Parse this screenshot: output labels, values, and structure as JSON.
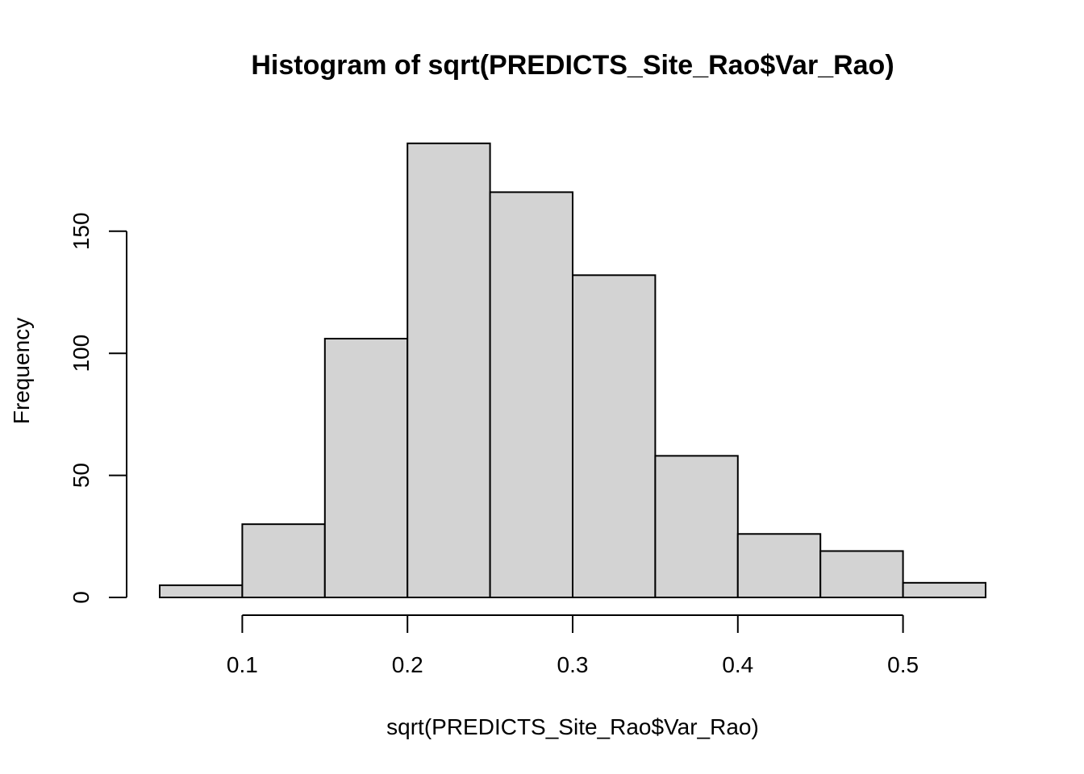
{
  "chart_data": {
    "type": "bar",
    "title": "Histogram of sqrt(PREDICTS_Site_Rao$Var_Rao)",
    "xlabel": "sqrt(PREDICTS_Site_Rao$Var_Rao)",
    "ylabel": "Frequency",
    "bin_edges": [
      0.05,
      0.1,
      0.15,
      0.2,
      0.25,
      0.3,
      0.35,
      0.4,
      0.45,
      0.5,
      0.55
    ],
    "values": [
      5,
      30,
      106,
      186,
      166,
      132,
      58,
      26,
      19,
      6
    ],
    "xlim": [
      0.05,
      0.55
    ],
    "ylim": [
      0,
      186
    ],
    "x_ticks": [
      0.1,
      0.2,
      0.3,
      0.4,
      0.5
    ],
    "x_tick_labels": [
      "0.1",
      "0.2",
      "0.3",
      "0.4",
      "0.5"
    ],
    "y_ticks": [
      0,
      50,
      100,
      150
    ],
    "y_tick_labels": [
      "0",
      "50",
      "100",
      "150"
    ],
    "bar_fill": "#d3d3d3",
    "bar_stroke": "#000000",
    "grid": false
  }
}
